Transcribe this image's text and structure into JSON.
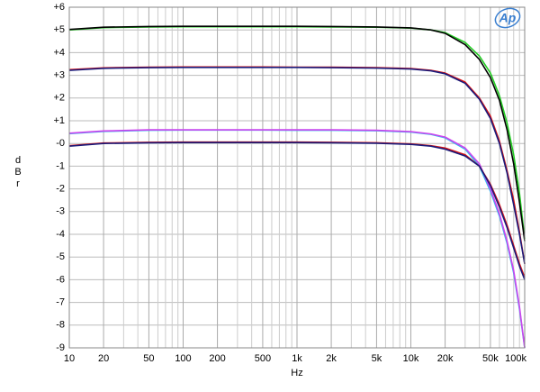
{
  "chart_data": {
    "type": "line",
    "xlabel": "Hz",
    "ylabel": "dBr",
    "logo": "Ap",
    "xscale": "log",
    "grid": true,
    "x": [
      10,
      20,
      50,
      100,
      200,
      500,
      1000,
      2000,
      5000,
      10000,
      15000,
      20000,
      30000,
      40000,
      50000,
      60000,
      70000,
      80000,
      90000,
      100000
    ],
    "xlim": [
      10,
      100000
    ],
    "xticks": [
      10,
      20,
      50,
      100,
      200,
      500,
      {
        "value": 1000,
        "label": "1k"
      },
      {
        "value": 2000,
        "label": "2k"
      },
      {
        "value": 5000,
        "label": "5k"
      },
      {
        "value": 10000,
        "label": "10k"
      },
      {
        "value": 20000,
        "label": "20k"
      },
      {
        "value": 50000,
        "label": "50k"
      },
      {
        "value": 100000,
        "label": "100k"
      }
    ],
    "xgrid": [
      30,
      40,
      60,
      70,
      80,
      90,
      300,
      400,
      600,
      700,
      800,
      900,
      3000,
      4000,
      6000,
      7000,
      8000,
      9000,
      30000,
      40000,
      60000,
      70000,
      80000,
      90000
    ],
    "ylim": [
      -9,
      6
    ],
    "yticks": [
      {
        "value": 6,
        "label": "+6"
      },
      {
        "value": 5,
        "label": "+5"
      },
      {
        "value": 4,
        "label": "+4"
      },
      {
        "value": 3,
        "label": "+3"
      },
      {
        "value": 2,
        "label": "+2"
      },
      {
        "value": 1,
        "label": "+1"
      },
      {
        "value": 0,
        "label": "-0"
      },
      {
        "value": -1,
        "label": "-1"
      },
      {
        "value": -2,
        "label": "-2"
      },
      {
        "value": -3,
        "label": "-3"
      },
      {
        "value": -4,
        "label": "-4"
      },
      {
        "value": -5,
        "label": "-5"
      },
      {
        "value": -6,
        "label": "-6"
      },
      {
        "value": -7,
        "label": "-7"
      },
      {
        "value": -8,
        "label": "-8"
      },
      {
        "value": -9,
        "label": "-9"
      }
    ],
    "series": [
      {
        "color": "#22cc22",
        "values": [
          5.0,
          5.1,
          5.13,
          5.14,
          5.14,
          5.14,
          5.14,
          5.13,
          5.12,
          5.08,
          5.0,
          4.88,
          4.45,
          3.85,
          3.1,
          2.1,
          0.9,
          -0.5,
          -2.2,
          -4.2
        ]
      },
      {
        "color": "#000000",
        "values": [
          5.02,
          5.12,
          5.15,
          5.16,
          5.16,
          5.16,
          5.16,
          5.15,
          5.13,
          5.09,
          5.0,
          4.85,
          4.35,
          3.7,
          2.9,
          1.9,
          0.6,
          -0.9,
          -2.6,
          -4.3
        ]
      },
      {
        "color": "#dd1111",
        "values": [
          3.25,
          3.33,
          3.36,
          3.37,
          3.37,
          3.37,
          3.36,
          3.36,
          3.34,
          3.3,
          3.22,
          3.1,
          2.7,
          2.0,
          1.2,
          0.1,
          -1.2,
          -2.5,
          -3.9,
          -5.3
        ]
      },
      {
        "color": "#1a1a7a",
        "values": [
          3.22,
          3.31,
          3.34,
          3.35,
          3.35,
          3.35,
          3.35,
          3.34,
          3.32,
          3.28,
          3.2,
          3.07,
          2.65,
          1.95,
          1.1,
          0.0,
          -1.3,
          -2.7,
          -4.0,
          -5.3
        ]
      },
      {
        "color": "#33bbee",
        "values": [
          0.43,
          0.53,
          0.58,
          0.59,
          0.59,
          0.59,
          0.58,
          0.58,
          0.56,
          0.5,
          0.4,
          0.25,
          -0.25,
          -1.0,
          -2.1,
          -3.2,
          -4.4,
          -5.7,
          -7.3,
          -9.0
        ]
      },
      {
        "color": "#cc44ee",
        "values": [
          0.45,
          0.55,
          0.6,
          0.6,
          0.6,
          0.6,
          0.6,
          0.6,
          0.58,
          0.52,
          0.42,
          0.28,
          -0.2,
          -0.9,
          -2.0,
          -3.1,
          -4.3,
          -5.6,
          -7.2,
          -9.0
        ]
      },
      {
        "color": "#dd1111",
        "values": [
          -0.1,
          0.02,
          0.05,
          0.06,
          0.06,
          0.06,
          0.06,
          0.05,
          0.03,
          -0.02,
          -0.1,
          -0.2,
          -0.5,
          -1.0,
          -1.8,
          -2.7,
          -3.6,
          -4.5,
          -5.3,
          -5.9
        ]
      },
      {
        "color": "#1a1a7a",
        "values": [
          -0.12,
          0.0,
          0.03,
          0.04,
          0.04,
          0.04,
          0.04,
          0.03,
          0.01,
          -0.04,
          -0.12,
          -0.25,
          -0.55,
          -1.0,
          -1.85,
          -2.8,
          -3.7,
          -4.6,
          -5.4,
          -6.0
        ]
      }
    ]
  }
}
